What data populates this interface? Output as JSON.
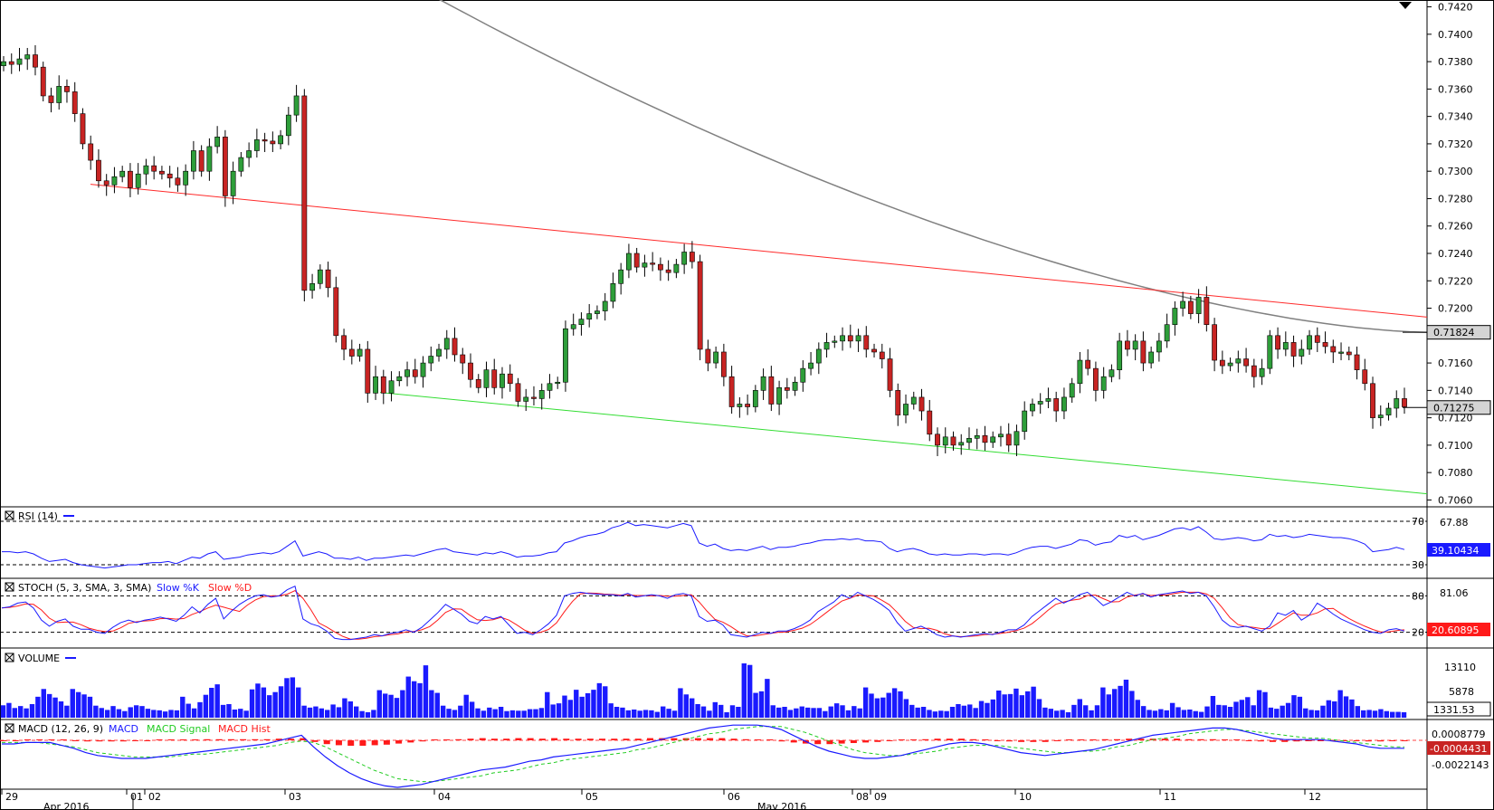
{
  "colors": {
    "up": "#2e9e3a",
    "down": "#c82423",
    "price_tag_bg": "#d4d4d4",
    "rsi": "#1a1aff",
    "stoch_k": "#1a1aff",
    "stoch_d": "#ff1a1a",
    "volume": "#1a1aff",
    "macd": "#1a1aff",
    "macd_signal": "#22cc22",
    "macd_hist": "#ff1a1a",
    "resistance": "#ff2a2a",
    "support": "#33dd33",
    "moving_average": "#808080"
  },
  "chart_data": [
    {
      "type": "candlestick",
      "ylim": [
        0.7055,
        0.7425
      ],
      "y_ticks": [
        "0.7420",
        "0.7400",
        "0.7380",
        "0.7360",
        "0.7340",
        "0.7320",
        "0.7300",
        "0.7280",
        "0.7260",
        "0.7240",
        "0.7220",
        "0.7200",
        "0.7180",
        "0.7160",
        "0.7140",
        "0.7120",
        "0.7100",
        "0.7080",
        "0.7060"
      ],
      "closes": [
        0.738,
        0.7378,
        0.7382,
        0.7385,
        0.7376,
        0.7355,
        0.735,
        0.7362,
        0.7358,
        0.7342,
        0.732,
        0.7308,
        0.7293,
        0.729,
        0.7296,
        0.73,
        0.7288,
        0.7298,
        0.7304,
        0.73,
        0.7298,
        0.7295,
        0.729,
        0.73,
        0.7315,
        0.73,
        0.7318,
        0.7325,
        0.7282,
        0.73,
        0.731,
        0.7315,
        0.7323,
        0.7322,
        0.732,
        0.7326,
        0.7341,
        0.7355,
        0.7213,
        0.7218,
        0.7228,
        0.7215,
        0.718,
        0.717,
        0.7165,
        0.717,
        0.7138,
        0.715,
        0.7138,
        0.7147,
        0.715,
        0.7155,
        0.715,
        0.716,
        0.7165,
        0.717,
        0.7178,
        0.7166,
        0.716,
        0.7148,
        0.7142,
        0.7155,
        0.7142,
        0.7152,
        0.7145,
        0.7132,
        0.7135,
        0.7134,
        0.714,
        0.7145,
        0.7146,
        0.7185,
        0.7188,
        0.7192,
        0.7196,
        0.7198,
        0.7205,
        0.7218,
        0.7228,
        0.724,
        0.723,
        0.7233,
        0.7232,
        0.7228,
        0.7226,
        0.7232,
        0.7241,
        0.7234,
        0.717,
        0.716,
        0.7168,
        0.715,
        0.7128,
        0.713,
        0.7128,
        0.714,
        0.715,
        0.713,
        0.7142,
        0.714,
        0.7146,
        0.7156,
        0.716,
        0.717,
        0.7175,
        0.7176,
        0.718,
        0.7176,
        0.718,
        0.717,
        0.7168,
        0.7163,
        0.714,
        0.7122,
        0.713,
        0.7135,
        0.7125,
        0.7108,
        0.71,
        0.7106,
        0.71,
        0.7102,
        0.7105,
        0.7107,
        0.7102,
        0.7106,
        0.7108,
        0.71,
        0.711,
        0.7125,
        0.713,
        0.7132,
        0.7134,
        0.7125,
        0.7135,
        0.7145,
        0.7162,
        0.7156,
        0.714,
        0.715,
        0.7155,
        0.7176,
        0.717,
        0.7176,
        0.716,
        0.7168,
        0.7176,
        0.7188,
        0.72,
        0.7205,
        0.7196,
        0.7208,
        0.7188,
        0.7162,
        0.7158,
        0.716,
        0.7163,
        0.7158,
        0.715,
        0.7156,
        0.718,
        0.717,
        0.7175,
        0.7165,
        0.717,
        0.718,
        0.7175,
        0.7172,
        0.7168,
        0.7168,
        0.7166,
        0.7155,
        0.7145,
        0.712,
        0.7122,
        0.7127,
        0.7134,
        0.7128
      ],
      "last_price": "0.71275",
      "ref_price": "0.71824",
      "moving_average": {
        "start": 0.744,
        "end": 0.71824
      },
      "resistance_line": {
        "start": 0.72905,
        "end": 0.71935
      },
      "support_line": {
        "start": 0.71385,
        "end": 0.70645
      }
    },
    {
      "type": "line",
      "title": "RSI (14)",
      "ylim": [
        20,
        80
      ],
      "levels": [
        {
          "value": 70,
          "label": "70"
        },
        {
          "value": 30,
          "label": "30"
        }
      ],
      "side_label": "67.88",
      "current_value": "39.10434",
      "values": [
        42,
        42,
        41,
        42,
        40,
        36,
        33,
        34,
        35,
        32,
        30,
        29,
        28,
        27,
        28,
        29,
        30,
        30,
        31,
        32,
        32,
        33,
        31,
        34,
        37,
        36,
        40,
        42,
        35,
        36,
        37,
        39,
        40,
        41,
        40,
        42,
        47,
        52,
        38,
        40,
        42,
        40,
        36,
        36,
        35,
        37,
        34,
        36,
        36,
        37,
        38,
        39,
        38,
        40,
        42,
        44,
        45,
        42,
        41,
        40,
        39,
        41,
        40,
        42,
        40,
        37,
        38,
        38,
        39,
        41,
        42,
        50,
        52,
        55,
        57,
        58,
        60,
        64,
        66,
        69,
        66,
        67,
        66,
        65,
        64,
        66,
        68,
        66,
        50,
        47,
        49,
        45,
        43,
        44,
        43,
        45,
        47,
        44,
        46,
        46,
        47,
        49,
        50,
        52,
        53,
        53,
        54,
        53,
        54,
        52,
        52,
        51,
        45,
        42,
        44,
        45,
        43,
        40,
        39,
        40,
        39,
        39,
        40,
        40,
        39,
        40,
        40,
        39,
        41,
        44,
        46,
        47,
        47,
        45,
        47,
        49,
        53,
        52,
        48,
        50,
        51,
        57,
        55,
        57,
        53,
        55,
        57,
        60,
        63,
        64,
        62,
        65,
        60,
        54,
        53,
        54,
        55,
        54,
        52,
        53,
        58,
        56,
        57,
        55,
        56,
        58,
        57,
        56,
        55,
        55,
        54,
        52,
        49,
        42,
        43,
        44,
        46,
        44
      ]
    },
    {
      "type": "line",
      "title": "STOCH (5, 3, SMA, 3, SMA)",
      "legend": [
        "Slow %K",
        "Slow %D"
      ],
      "ylim": [
        0,
        100
      ],
      "levels": [
        {
          "value": 80,
          "label": "80"
        },
        {
          "value": 20,
          "label": "20"
        }
      ],
      "side_label": "81.06",
      "current_value": "20.60895",
      "k_values": [
        60,
        62,
        68,
        70,
        60,
        40,
        30,
        38,
        42,
        30,
        25,
        25,
        20,
        18,
        28,
        36,
        40,
        36,
        40,
        42,
        45,
        42,
        38,
        48,
        62,
        52,
        66,
        76,
        42,
        55,
        66,
        74,
        80,
        82,
        78,
        80,
        90,
        96,
        42,
        34,
        30,
        22,
        10,
        8,
        8,
        10,
        12,
        16,
        14,
        18,
        20,
        24,
        20,
        28,
        40,
        52,
        66,
        58,
        50,
        38,
        34,
        46,
        42,
        46,
        32,
        18,
        20,
        16,
        24,
        34,
        48,
        80,
        84,
        86,
        84,
        83,
        82,
        82,
        80,
        84,
        78,
        80,
        82,
        80,
        76,
        82,
        84,
        80,
        46,
        38,
        40,
        32,
        16,
        14,
        12,
        16,
        20,
        18,
        22,
        22,
        26,
        32,
        40,
        54,
        62,
        70,
        82,
        76,
        86,
        80,
        74,
        66,
        56,
        36,
        22,
        26,
        30,
        24,
        16,
        12,
        14,
        12,
        14,
        16,
        18,
        16,
        20,
        24,
        24,
        32,
        46,
        56,
        66,
        76,
        68,
        74,
        82,
        86,
        76,
        64,
        70,
        78,
        86,
        80,
        84,
        78,
        82,
        84,
        86,
        88,
        84,
        86,
        80,
        62,
        40,
        30,
        28,
        30,
        26,
        22,
        30,
        52,
        48,
        56,
        40,
        48,
        68,
        60,
        50,
        42,
        36,
        30,
        24,
        20,
        18,
        24,
        26,
        22
      ]
    },
    {
      "type": "bar",
      "title": "VOLUME",
      "ylim": [
        0,
        14000
      ],
      "side_label": "13110",
      "tick": "5878",
      "current_value": "1331.53",
      "values": [
        3200,
        3800,
        2500,
        3000,
        2400,
        3500,
        5400,
        7400,
        6100,
        5200,
        4200,
        3100,
        7400,
        6600,
        6000,
        5400,
        3100,
        2500,
        2000,
        3000,
        2200,
        1700,
        2700,
        3200,
        3000,
        2300,
        2000,
        1900,
        1600,
        2000,
        1900,
        5400,
        3600,
        2400,
        4000,
        5900,
        7700,
        8600,
        3300,
        3500,
        2100,
        2300,
        1800,
        7300,
        8800,
        7800,
        5800,
        6600,
        8100,
        10200,
        10400,
        7800,
        3100,
        2600,
        2900,
        2400,
        2000,
        3400,
        2700,
        5000,
        4200,
        2900,
        1700,
        1400,
        2000,
        7100,
        6200,
        5900,
        5100,
        7100,
        10600,
        9400,
        8900,
        13500,
        7100,
        6400,
        3100,
        2300,
        2000,
        3100,
        5900,
        4100,
        2400,
        1800,
        2600,
        2200,
        2800,
        1700,
        1900,
        1800,
        1800,
        2200,
        2200,
        2500,
        6600,
        3400,
        3700,
        5700,
        4600,
        7200,
        5400,
        6300,
        7200,
        8900,
        8100,
        3700,
        2800,
        2600,
        1900,
        2100,
        1800,
        2000,
        1900,
        1500,
        2900,
        2300,
        1800,
        7600,
        6000,
        5000,
        3500,
        2900,
        1800,
        4000,
        3300,
        1400,
        3200,
        2800,
        14000,
        13600,
        6400,
        6800,
        10000,
        3200,
        2600,
        2800,
        2000,
        2400,
        2900,
        2600,
        2500,
        2500,
        1700,
        2900,
        3700,
        3200,
        1900,
        3000,
        2400,
        7800,
        6200,
        5000,
        5200,
        6400,
        7600,
        6800,
        4800,
        3300,
        2600,
        2800,
        2000,
        1600,
        1800,
        1700,
        2800,
        3500,
        3100,
        3400,
        2500,
        4300,
        3800,
        4700,
        7000,
        6000,
        6100,
        7500,
        5800,
        6800,
        8000,
        4800,
        2600,
        2300,
        1800,
        2000,
        1400,
        3300,
        4800,
        3200,
        1900,
        3200,
        7800,
        6000,
        7400,
        8200,
        9800,
        6900,
        4600,
        3000,
        2000,
        1800,
        2200,
        1900,
        3800,
        2700,
        2000,
        2100,
        1700,
        1500,
        2900,
        5600,
        3300,
        3200,
        2800,
        4100,
        4600,
        5300,
        3200,
        7100,
        6600,
        2600,
        2300,
        3100,
        3800,
        5800,
        5400,
        2400,
        2000,
        1900,
        3100,
        4500,
        4200,
        7100,
        5500,
        4700,
        3000,
        1900,
        2000,
        1800,
        2200,
        1700,
        1500,
        1500,
        1400
      ]
    },
    {
      "type": "line",
      "title": "MACD (12, 26, 9)",
      "legend": [
        "MACD",
        "MACD Signal",
        "MACD Hist"
      ],
      "ylim": [
        -0.0032,
        0.0013
      ],
      "ticks": [
        "0.0008779",
        "-0.0022143"
      ],
      "current_value": "-0.0004431",
      "macd": [
        -0.0002,
        -0.0002,
        -0.0001,
        -0.0001,
        -0.0001,
        -0.0003,
        -0.0005,
        -0.0008,
        -0.001,
        -0.0011,
        -0.0012,
        -0.0012,
        -0.0012,
        -0.0011,
        -0.001,
        -0.0009,
        -0.0008,
        -0.0007,
        -0.0006,
        -0.0005,
        -0.0004,
        -0.0003,
        -0.0002,
        0.0,
        0.0002,
        0.0004,
        -0.0004,
        -0.0011,
        -0.0017,
        -0.0022,
        -0.0026,
        -0.0029,
        -0.0031,
        -0.0032,
        -0.0031,
        -0.003,
        -0.0028,
        -0.0026,
        -0.0024,
        -0.0022,
        -0.002,
        -0.0019,
        -0.0018,
        -0.0016,
        -0.0014,
        -0.0013,
        -0.0011,
        -0.001,
        -0.0009,
        -0.0008,
        -0.0007,
        -0.0006,
        -0.0005,
        -0.0003,
        -0.0001,
        0.0001,
        0.0003,
        0.0005,
        0.0007,
        0.0009,
        0.001,
        0.0011,
        0.0011,
        0.0011,
        0.001,
        0.0008,
        0.0004,
        0.0,
        -0.0004,
        -0.0007,
        -0.0009,
        -0.0011,
        -0.0012,
        -0.0012,
        -0.0011,
        -0.001,
        -0.0008,
        -0.0006,
        -0.0004,
        -0.0002,
        -0.0001,
        -0.0001,
        -0.0002,
        -0.0004,
        -0.0006,
        -0.0008,
        -0.0009,
        -0.001,
        -0.0009,
        -0.0008,
        -0.0007,
        -0.0006,
        -0.0004,
        -0.0002,
        0.0,
        0.0002,
        0.0004,
        0.0005,
        0.0006,
        0.0007,
        0.0008,
        0.0009,
        0.0009,
        0.0008,
        0.0006,
        0.0004,
        0.0002,
        0.0001,
        0.0001,
        0.0001,
        0.0001,
        0.0,
        -0.0001,
        -0.0002,
        -0.0004,
        -0.0005,
        -0.0005,
        -0.0005
      ],
      "signal": [
        -0.0001,
        -0.0001,
        -0.0001,
        -0.0001,
        -0.0002,
        -0.0003,
        -0.0004,
        -0.0006,
        -0.0008,
        -0.0009,
        -0.001,
        -0.0011,
        -0.0011,
        -0.0011,
        -0.0011,
        -0.001,
        -0.0009,
        -0.0009,
        -0.0008,
        -0.0007,
        -0.0006,
        -0.0005,
        -0.0004,
        -0.0003,
        -0.0001,
        0.0,
        -0.0001,
        -0.0004,
        -0.0008,
        -0.0012,
        -0.0016,
        -0.002,
        -0.0023,
        -0.0026,
        -0.0027,
        -0.0028,
        -0.0028,
        -0.0027,
        -0.0026,
        -0.0025,
        -0.0024,
        -0.0022,
        -0.0021,
        -0.002,
        -0.0018,
        -0.0016,
        -0.0015,
        -0.0013,
        -0.0012,
        -0.0011,
        -0.001,
        -0.0009,
        -0.0008,
        -0.0006,
        -0.0005,
        -0.0003,
        -0.0001,
        0.0001,
        0.0003,
        0.0005,
        0.0006,
        0.0008,
        0.0009,
        0.001,
        0.001,
        0.001,
        0.0008,
        0.0006,
        0.0003,
        0.0,
        -0.0003,
        -0.0006,
        -0.0008,
        -0.0009,
        -0.001,
        -0.001,
        -0.0009,
        -0.0008,
        -0.0007,
        -0.0005,
        -0.0004,
        -0.0003,
        -0.0003,
        -0.0003,
        -0.0004,
        -0.0005,
        -0.0006,
        -0.0007,
        -0.0008,
        -0.0008,
        -0.0007,
        -0.0007,
        -0.0006,
        -0.0004,
        -0.0003,
        -0.0001,
        0.0001,
        0.0002,
        0.0003,
        0.0005,
        0.0006,
        0.0007,
        0.0008,
        0.0008,
        0.0007,
        0.0006,
        0.0005,
        0.0004,
        0.0003,
        0.0002,
        0.0002,
        0.0001,
        0.0,
        -0.0001,
        -0.0002,
        -0.0003,
        -0.0004,
        -0.0004
      ]
    }
  ],
  "x_axis": {
    "day_labels": [
      "29",
      "01",
      "02",
      "03",
      "04",
      "05",
      "06",
      "08",
      "09",
      "10",
      "11",
      "12"
    ],
    "month_labels": [
      "Apr 2016",
      "May 2016"
    ]
  }
}
